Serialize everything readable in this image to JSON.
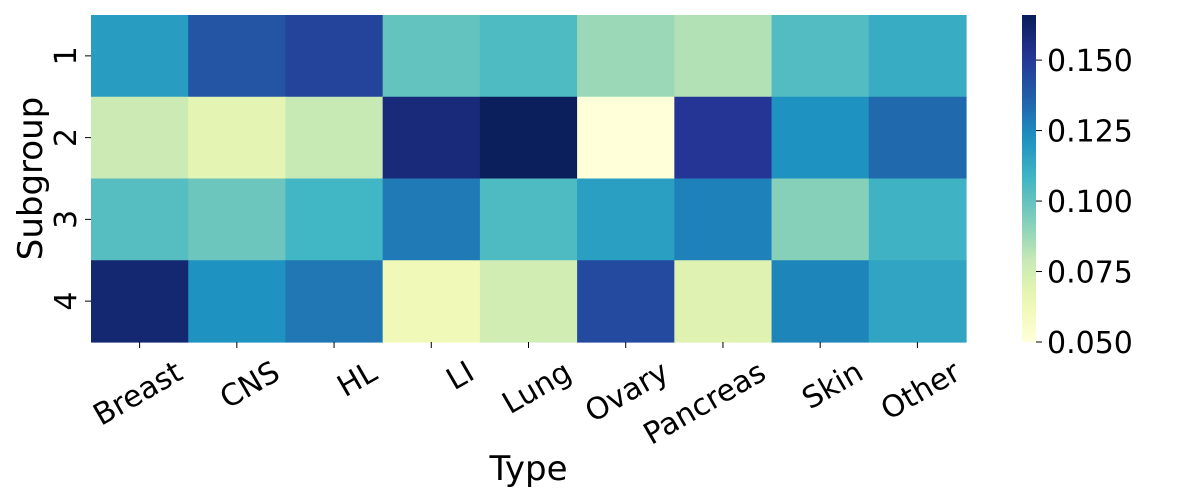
{
  "chart_data": {
    "type": "heatmap",
    "xlabel": "Type",
    "ylabel": "Subgroup",
    "x_categories": [
      "Breast",
      "CNS",
      "HL",
      "LI",
      "Lung",
      "Ovary",
      "Pancreas",
      "Skin",
      "Other"
    ],
    "y_categories": [
      "1",
      "2",
      "3",
      "4"
    ],
    "values": [
      [
        0.118,
        0.14,
        0.146,
        0.1,
        0.105,
        0.088,
        0.083,
        0.104,
        0.112
      ],
      [
        0.077,
        0.068,
        0.079,
        0.158,
        0.165,
        0.05,
        0.151,
        0.122,
        0.134
      ],
      [
        0.103,
        0.098,
        0.108,
        0.129,
        0.105,
        0.117,
        0.127,
        0.092,
        0.109
      ],
      [
        0.16,
        0.122,
        0.13,
        0.062,
        0.075,
        0.144,
        0.07,
        0.126,
        0.115
      ]
    ],
    "colormap": "YlGnBu",
    "colorbar": {
      "min": 0.05,
      "max": 0.166,
      "ticks": [
        0.05,
        0.075,
        0.1,
        0.125,
        0.15
      ],
      "tick_labels": [
        "0.050",
        "0.075",
        "0.100",
        "0.125",
        "0.150"
      ]
    },
    "grid": false
  }
}
